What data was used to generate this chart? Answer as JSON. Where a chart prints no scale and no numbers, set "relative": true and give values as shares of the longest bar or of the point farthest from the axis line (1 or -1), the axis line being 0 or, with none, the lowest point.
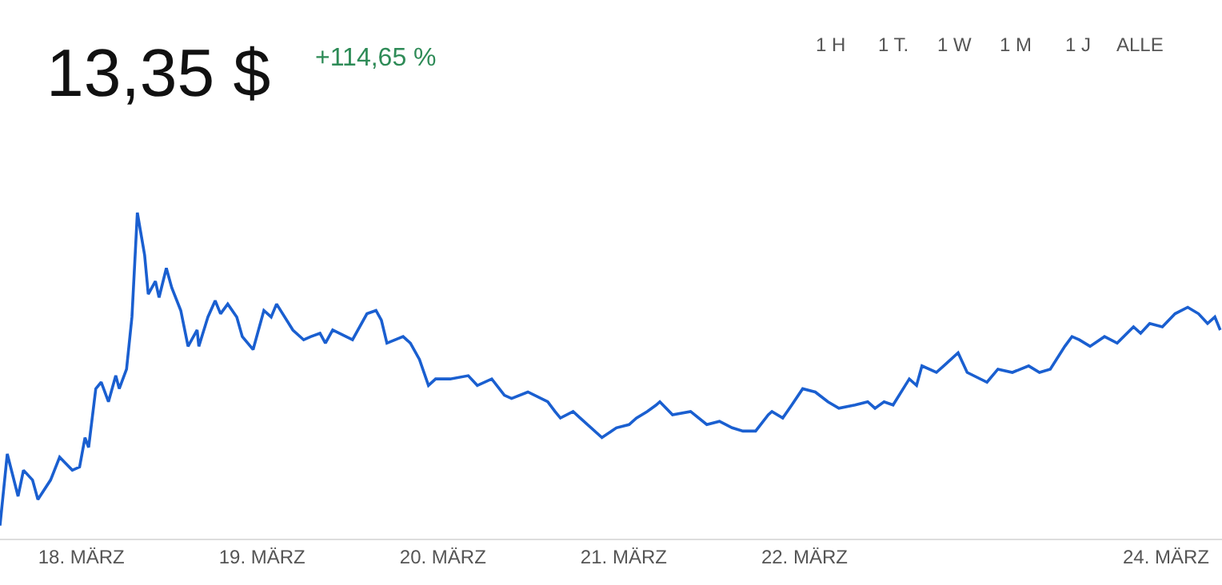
{
  "chart_data": {
    "type": "line",
    "relative": true,
    "title": "13,35 $",
    "subtitle": "+114,65 %",
    "annotations": [
      "1 H",
      "1 T.",
      "1 W",
      "1 M",
      "1 J",
      "ALLE"
    ],
    "xlim": [
      "--03-17T13:12",
      "--03-24T07:26"
    ],
    "xticks": [
      {
        "value": "--03-18",
        "label": "18. MÄRZ"
      },
      {
        "value": "--03-19",
        "label": "19. MÄRZ"
      },
      {
        "value": "--03-20",
        "label": "20. MÄRZ"
      },
      {
        "value": "--03-21",
        "label": "21. MÄRZ"
      },
      {
        "value": "--03-22",
        "label": "22. MÄRZ"
      },
      {
        "value": "--03-24",
        "label": "24. MÄRZ"
      }
    ],
    "grid": false,
    "marker": "none",
    "line_style": "solid",
    "series": [
      {
        "color": "#1a5fd0",
        "x": [
          "--03-17T13:12",
          "--03-17T14:10",
          "--03-17T15:36",
          "--03-17T16:19",
          "--03-17T17:31",
          "--03-17T18:14",
          "--03-17T19:55",
          "--03-17T21:07",
          "--03-17T22:48",
          "--03-17T23:46",
          "--03-18T00:29",
          "--03-18T00:58",
          "--03-18T01:55",
          "--03-18T02:38",
          "--03-18T03:36",
          "--03-18T04:34",
          "--03-18T05:02",
          "--03-18T06:00",
          "--03-18T06:43",
          "--03-18T07:26",
          "--03-18T08:24",
          "--03-18T08:53",
          "--03-18T09:50",
          "--03-18T10:19",
          "--03-18T11:17",
          "--03-18T12:00",
          "--03-18T13:12",
          "--03-18T14:10",
          "--03-18T15:22",
          "--03-18T15:36",
          "--03-18T16:48",
          "--03-18T17:46",
          "--03-18T18:29",
          "--03-18T19:26",
          "--03-18T20:38",
          "--03-18T21:22",
          "--03-18T22:48",
          "--03-19T00:14",
          "--03-19T01:12",
          "--03-19T01:55",
          "--03-19T04:05",
          "--03-19T05:31",
          "--03-19T06:29",
          "--03-19T07:41",
          "--03-19T08:24",
          "--03-19T09:22",
          "--03-19T12:00",
          "--03-19T13:55",
          "--03-19T15:07",
          "--03-19T15:50",
          "--03-19T16:34",
          "--03-19T18:43",
          "--03-19T19:41",
          "--03-19T20:53",
          "--03-19T22:05",
          "--03-19T23:02",
          "--03-20T00:58",
          "--03-20T03:22",
          "--03-20T04:34",
          "--03-20T06:29",
          "--03-20T08:10",
          "--03-20T09:07",
          "--03-20T11:17",
          "--03-20T13:55",
          "--03-20T14:53",
          "--03-20T15:36",
          "--03-20T17:17",
          "--03-20T18:14",
          "--03-20T21:07",
          "--03-20T23:02",
          "--03-21T00:43",
          "--03-21T01:41",
          "--03-21T03:07",
          "--03-21T04:19",
          "--03-21T04:48",
          "--03-21T06:29",
          "--03-21T08:53",
          "--03-21T11:02",
          "--03-21T12:43",
          "--03-21T14:24",
          "--03-21T15:50",
          "--03-21T17:31",
          "--03-21T19:12",
          "--03-21T19:41",
          "--03-21T21:07",
          "--03-21T22:19",
          "--03-21T23:46",
          "--03-22T01:26",
          "--03-22T03:07",
          "--03-22T04:34",
          "--03-22T06:43",
          "--03-22T08:24",
          "--03-22T09:22",
          "--03-22T10:34",
          "--03-22T11:46",
          "--03-22T13:55",
          "--03-22T14:53",
          "--03-22T15:36",
          "--03-22T17:31",
          "--03-22T18:29",
          "--03-22T20:24",
          "--03-22T21:36",
          "--03-23T00:14",
          "--03-23T01:41",
          "--03-23T03:36",
          "--03-23T05:46",
          "--03-23T07:12",
          "--03-23T08:38",
          "--03-23T10:34",
          "--03-23T11:31",
          "--03-23T12:29",
          "--03-23T13:55",
          "--03-23T15:50",
          "--03-23T17:31",
          "--03-23T19:41",
          "--03-23T20:38",
          "--03-23T21:50",
          "--03-23T23:31",
          "--03-24T01:12",
          "--03-24T02:53",
          "--03-24T04:19",
          "--03-24T05:31",
          "--03-24T06:29",
          "--03-24T07:12"
        ],
        "values": [
          0.04,
          0.26,
          0.13,
          0.21,
          0.18,
          0.12,
          0.18,
          0.25,
          0.21,
          0.22,
          0.31,
          0.28,
          0.46,
          0.48,
          0.42,
          0.5,
          0.46,
          0.52,
          0.68,
          1.0,
          0.87,
          0.75,
          0.79,
          0.74,
          0.83,
          0.77,
          0.7,
          0.59,
          0.64,
          0.59,
          0.68,
          0.73,
          0.69,
          0.72,
          0.68,
          0.62,
          0.58,
          0.7,
          0.68,
          0.72,
          0.64,
          0.61,
          0.62,
          0.63,
          0.6,
          0.64,
          0.61,
          0.69,
          0.7,
          0.67,
          0.6,
          0.62,
          0.6,
          0.55,
          0.47,
          0.49,
          0.49,
          0.5,
          0.47,
          0.49,
          0.44,
          0.43,
          0.45,
          0.42,
          0.39,
          0.37,
          0.39,
          0.37,
          0.31,
          0.34,
          0.35,
          0.37,
          0.39,
          0.41,
          0.42,
          0.38,
          0.39,
          0.35,
          0.36,
          0.34,
          0.33,
          0.33,
          0.38,
          0.39,
          0.37,
          0.41,
          0.46,
          0.45,
          0.42,
          0.4,
          0.41,
          0.42,
          0.4,
          0.42,
          0.41,
          0.49,
          0.47,
          0.53,
          0.51,
          0.53,
          0.57,
          0.51,
          0.48,
          0.52,
          0.51,
          0.53,
          0.51,
          0.52,
          0.59,
          0.62,
          0.61,
          0.59,
          0.62,
          0.6,
          0.65,
          0.63,
          0.66,
          0.65,
          0.69,
          0.71,
          0.69,
          0.66,
          0.68,
          0.64
        ]
      }
    ]
  }
}
